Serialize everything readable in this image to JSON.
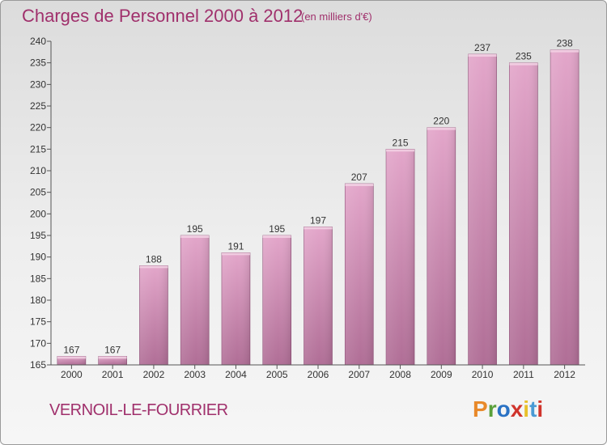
{
  "header": {
    "title": "Charges de Personnel 2000 à 2012",
    "subtitle": "(en milliers d'€)"
  },
  "footer": {
    "commune": "VERNOIL-LE-FOURRIER",
    "logo_text": "Proxiti"
  },
  "colors": {
    "title": "#a0306c",
    "bar_top": "#e3a6ca",
    "bar_bottom": "#b06e96",
    "bar_border": "#8a4a72",
    "logo": [
      "#e8892a",
      "#5aa03a",
      "#2a72c4",
      "#d0342c",
      "#e8c02a",
      "#4a9ad4",
      "#d0342c"
    ]
  },
  "chart_data": {
    "type": "bar",
    "categories": [
      "2000",
      "2001",
      "2002",
      "2003",
      "2004",
      "2005",
      "2006",
      "2007",
      "2008",
      "2009",
      "2010",
      "2011",
      "2012"
    ],
    "values": [
      167,
      167,
      188,
      195,
      191,
      195,
      197,
      207,
      215,
      220,
      237,
      235,
      238
    ],
    "ylim": [
      165,
      240
    ],
    "yticks": [
      165,
      170,
      175,
      180,
      185,
      190,
      195,
      200,
      205,
      210,
      215,
      220,
      225,
      230,
      235,
      240
    ],
    "grid": false
  }
}
